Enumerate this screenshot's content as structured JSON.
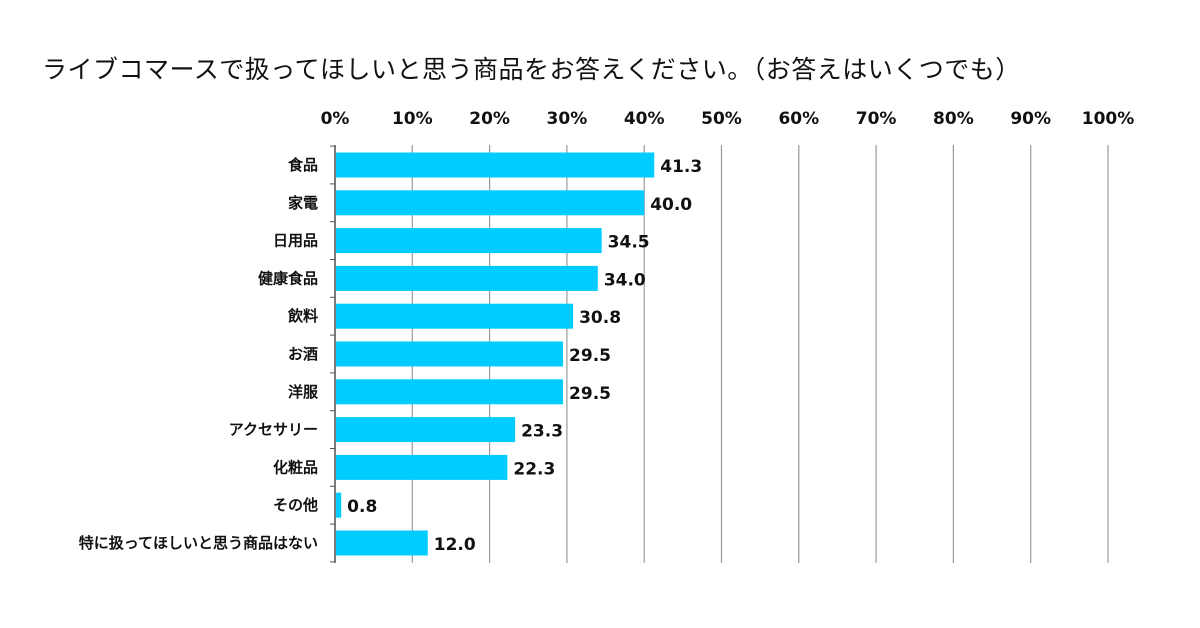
{
  "chart_data": {
    "type": "bar",
    "orientation": "horizontal",
    "title": "ライブコマースで扱ってほしいと思う商品をお答えください。（お答えはいくつでも）",
    "categories": [
      "食品",
      "家電",
      "日用品",
      "健康食品",
      "飲料",
      "お酒",
      "洋服",
      "アクセサリー",
      "化粧品",
      "その他",
      "特に扱ってほしいと思う商品はない"
    ],
    "values": [
      41.3,
      40.0,
      34.5,
      34.0,
      30.8,
      29.5,
      29.5,
      23.3,
      22.3,
      0.8,
      12.0
    ],
    "value_labels": [
      "41.3",
      "40.0",
      "34.5",
      "34.0",
      "30.8",
      "29.5",
      "29.5",
      "23.3",
      "22.3",
      "0.8",
      "12.0"
    ],
    "xlim": [
      0,
      100
    ],
    "xticks": [
      0,
      10,
      20,
      30,
      40,
      50,
      60,
      70,
      80,
      90,
      100
    ],
    "xtick_labels": [
      "0%",
      "10%",
      "20%",
      "30%",
      "40%",
      "50%",
      "60%",
      "70%",
      "80%",
      "90%",
      "100%"
    ],
    "xaxis_position": "top",
    "grid": true,
    "xlabel": "",
    "ylabel": "",
    "colors": {
      "bar": "#00ccff",
      "grid": "#9a9a9a",
      "axis": "#555555"
    }
  }
}
